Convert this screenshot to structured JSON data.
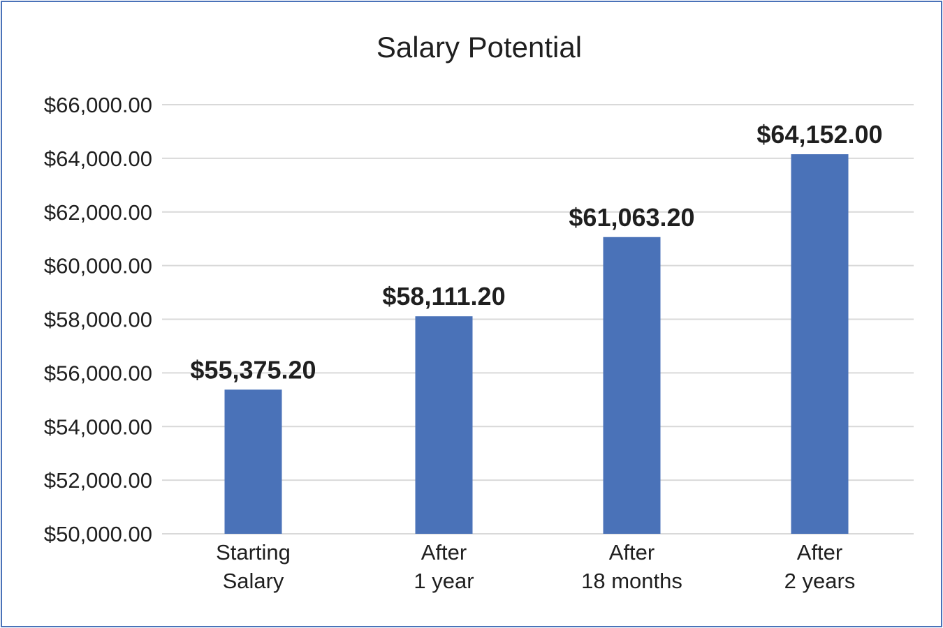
{
  "chart_data": {
    "type": "bar",
    "title": "Salary Potential",
    "xlabel": "",
    "ylabel": "",
    "categories": [
      [
        "Starting",
        "Salary"
      ],
      [
        "After",
        "1 year"
      ],
      [
        "After",
        "18 months"
      ],
      [
        "After",
        "2 years"
      ]
    ],
    "values": [
      55375.2,
      58111.2,
      61063.2,
      64152.0
    ],
    "data_labels": [
      "$55,375.20",
      "$58,111.20",
      "$61,063.20",
      "$64,152.00"
    ],
    "ylim": [
      50000,
      66000
    ],
    "yticks": [
      50000,
      52000,
      54000,
      56000,
      58000,
      60000,
      62000,
      64000,
      66000
    ],
    "ytick_labels": [
      "$50,000.00",
      "$52,000.00",
      "$54,000.00",
      "$56,000.00",
      "$58,000.00",
      "$60,000.00",
      "$62,000.00",
      "$64,000.00",
      "$66,000.00"
    ],
    "grid": true,
    "legend": "none",
    "colors": {
      "bar": "#4a72b8",
      "grid": "#d9d9d9",
      "border": "#4a72b8",
      "text": "#1f1f1f"
    }
  }
}
